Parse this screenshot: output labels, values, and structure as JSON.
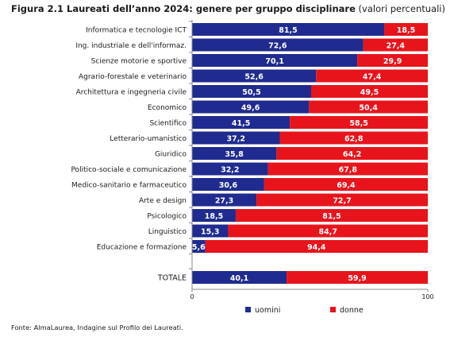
{
  "figure": {
    "title_bold": "Figura 2.1 Laureati dell’anno 2024: genere per gruppo disciplinare",
    "title_rest": "(valori percentuali)",
    "source": "Fonte: AlmaLaurea, Indagine sul Profilo dei Laureati."
  },
  "colors": {
    "uomini": "#1f2b8f",
    "donne": "#e8141c"
  },
  "chart_data": {
    "type": "bar",
    "orientation": "horizontal",
    "stacked": true,
    "categories": [
      "Informatica e tecnologie ICT",
      "Ing. industriale e dell'informaz.",
      "Scienze motorie e sportive",
      "Agrario-forestale e veterinario",
      "Architettura e ingegneria civile",
      "Economico",
      "Scientifico",
      "Letterario-umanistico",
      "Giuridico",
      "Politico-sociale e comunicazione",
      "Medico-sanitario e farmaceutico",
      "Arte e design",
      "Psicologico",
      "Linguistico",
      "Educazione e formazione",
      "TOTALE"
    ],
    "series": [
      {
        "name": "uomini",
        "color": "#1f2b8f",
        "values": [
          81.5,
          72.6,
          70.1,
          52.6,
          50.5,
          49.6,
          41.5,
          37.2,
          35.8,
          32.2,
          30.6,
          27.3,
          18.5,
          15.3,
          5.6,
          40.1
        ],
        "labels": [
          "81,5",
          "72,6",
          "70,1",
          "52,6",
          "50,5",
          "49,6",
          "41,5",
          "37,2",
          "35,8",
          "32,2",
          "30,6",
          "27,3",
          "18,5",
          "15,3",
          "5,6",
          "40,1"
        ]
      },
      {
        "name": "donne",
        "color": "#e8141c",
        "values": [
          18.5,
          27.4,
          29.9,
          47.4,
          49.5,
          50.4,
          58.5,
          62.8,
          64.2,
          67.8,
          69.4,
          72.7,
          81.5,
          84.7,
          94.4,
          59.9
        ],
        "labels": [
          "18,5",
          "27,4",
          "29,9",
          "47,4",
          "49,5",
          "50,4",
          "58,5",
          "62,8",
          "64,2",
          "67,8",
          "69,4",
          "72,7",
          "81,5",
          "84,7",
          "94,4",
          "59,9"
        ]
      }
    ],
    "xlim": [
      0,
      100
    ],
    "x_ticks": [
      "0",
      "100"
    ],
    "grid": false,
    "legend_position": "bottom"
  }
}
